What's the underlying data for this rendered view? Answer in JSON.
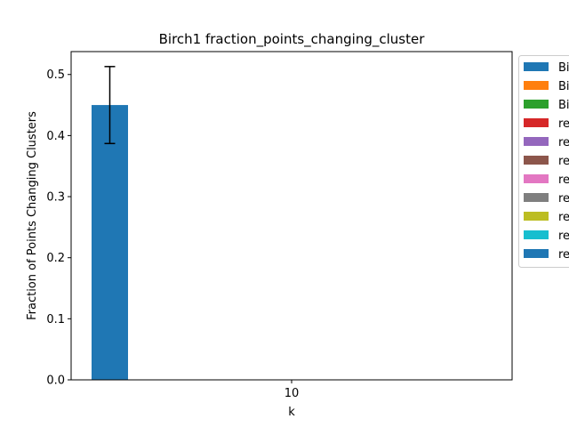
{
  "chart_data": {
    "type": "bar",
    "title": "Birch1 fraction_points_changing_cluster",
    "xlabel": "k",
    "ylabel": "Fraction of Points Changing Clusters",
    "categories": [
      "10"
    ],
    "ylim": [
      0,
      0.5375
    ],
    "yticks": [
      "0.0",
      "0.1",
      "0.2",
      "0.3",
      "0.4",
      "0.5"
    ],
    "ytick_values": [
      0,
      0.1,
      0.2,
      0.3,
      0.4,
      0.5
    ],
    "grid": false,
    "legend_position": "outside right, top",
    "series": [
      {
        "name": "Bi",
        "color": "#1f77b4",
        "values": [
          0.45
        ],
        "error": [
          0.063
        ]
      },
      {
        "name": "Bi",
        "color": "#ff7f0e",
        "values": [
          0
        ]
      },
      {
        "name": "Bi",
        "color": "#2ca02c",
        "values": [
          0
        ]
      },
      {
        "name": "re",
        "color": "#d62728",
        "values": [
          0
        ]
      },
      {
        "name": "re",
        "color": "#9467bd",
        "values": [
          0
        ]
      },
      {
        "name": "re",
        "color": "#8c564b",
        "values": [
          0
        ]
      },
      {
        "name": "re",
        "color": "#e377c2",
        "values": [
          0
        ]
      },
      {
        "name": "re",
        "color": "#7f7f7f",
        "values": [
          0
        ]
      },
      {
        "name": "re",
        "color": "#bcbd22",
        "values": [
          0
        ]
      },
      {
        "name": "re",
        "color": "#17becf",
        "values": [
          0
        ]
      },
      {
        "name": "re",
        "color": "#1f77b4",
        "values": [
          0
        ]
      }
    ]
  }
}
